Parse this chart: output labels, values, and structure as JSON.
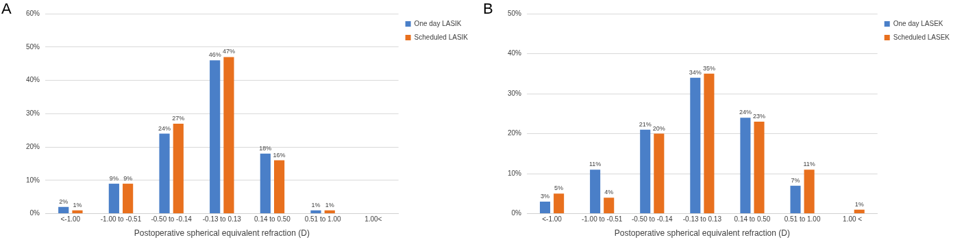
{
  "chart_data": [
    {
      "type": "bar",
      "title": "A",
      "xlabel": "Postoperative spherical equivalent refraction (D)",
      "categories": [
        "<-1.00",
        "-1.00 to -0.51",
        "-0.50 to -0.14",
        "-0.13 to 0.13",
        "0.14 to 0.50",
        "0.51 to 1.00",
        "1.00<"
      ],
      "series": [
        {
          "name": "One day LASIK",
          "color": "#4a7fc8",
          "values": [
            2,
            9,
            24,
            46,
            18,
            1,
            null
          ],
          "value_labels": [
            "2%",
            "9%",
            "24%",
            "46%",
            "18%",
            "1%",
            null
          ]
        },
        {
          "name": "Scheduled LASIK",
          "color": "#e8701e",
          "values": [
            1,
            9,
            27,
            47,
            16,
            1,
            null
          ],
          "value_labels": [
            "1%",
            "9%",
            "27%",
            "47%",
            "16%",
            "1%",
            null
          ]
        }
      ],
      "ylim": [
        0,
        60
      ],
      "yticks": [
        {
          "value": 0,
          "label": "0%"
        },
        {
          "value": 10,
          "label": "10%"
        },
        {
          "value": 20,
          "label": "20%"
        },
        {
          "value": 30,
          "label": "30%"
        },
        {
          "value": 40,
          "label": "40%"
        },
        {
          "value": 50,
          "label": "50%"
        },
        {
          "value": 60,
          "label": "60%"
        }
      ],
      "grid": "y",
      "legend": "top right"
    },
    {
      "type": "bar",
      "title": "B",
      "xlabel": "Postoperative spherical equivalent refraction (D)",
      "categories": [
        "<-1.00",
        "-1.00 to -0.51",
        "-0.50 to -0.14",
        "-0.13 to 0.13",
        "0.14 to 0.50",
        "0.51 to 1.00",
        "1.00 <"
      ],
      "series": [
        {
          "name": "One day LASEK",
          "color": "#4a7fc8",
          "values": [
            3,
            11,
            21,
            34,
            24,
            7,
            null
          ],
          "value_labels": [
            "3%",
            "11%",
            "21%",
            "34%",
            "24%",
            "7%",
            null
          ]
        },
        {
          "name": "Scheduled LASEK",
          "color": "#e8701e",
          "values": [
            5,
            4,
            20,
            35,
            23,
            11,
            1
          ],
          "value_labels": [
            "5%",
            "4%",
            "20%",
            "35%",
            "23%",
            "11%",
            "1%"
          ]
        }
      ],
      "ylim": [
        0,
        50
      ],
      "yticks": [
        {
          "value": 0,
          "label": "0%"
        },
        {
          "value": 10,
          "label": "10%"
        },
        {
          "value": 20,
          "label": "20%"
        },
        {
          "value": 30,
          "label": "30%"
        },
        {
          "value": 40,
          "label": "40%"
        },
        {
          "value": 50,
          "label": "50%"
        }
      ],
      "grid": "y",
      "legend": "top right"
    }
  ]
}
